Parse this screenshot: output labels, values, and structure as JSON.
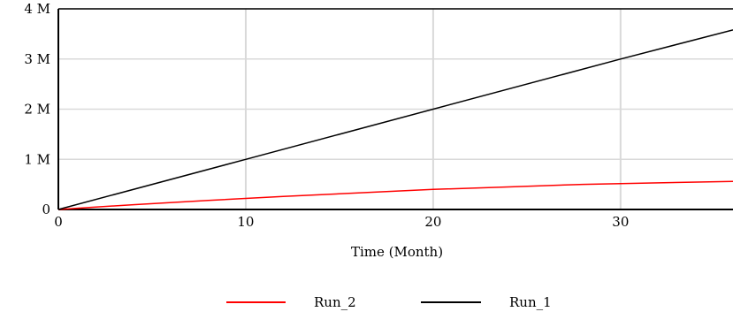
{
  "chart_data": {
    "type": "line",
    "xlabel": "Time (Month)",
    "ylabel": "",
    "xlim": [
      0,
      36
    ],
    "ylim": [
      0,
      4000000
    ],
    "x_ticks": [
      0,
      10,
      20,
      30
    ],
    "x_tick_labels": [
      "0",
      "10",
      "20",
      "30"
    ],
    "y_ticks": [
      0,
      1000000,
      2000000,
      3000000,
      4000000
    ],
    "y_tick_labels": [
      "0",
      "1 M",
      "2 M",
      "3 M",
      "4 M"
    ],
    "grid": true,
    "legend_position": "bottom",
    "series": [
      {
        "name": "Run_2",
        "color": "#ff0000",
        "x": [
          0,
          4,
          8,
          12,
          16,
          20,
          24,
          28,
          32,
          36
        ],
        "y": [
          0,
          95000,
          180000,
          260000,
          330000,
          400000,
          450000,
          500000,
          530000,
          560000
        ]
      },
      {
        "name": "Run_1",
        "color": "#000000",
        "x": [
          0,
          10,
          20,
          30,
          36
        ],
        "y": [
          0,
          1000000,
          2000000,
          3000000,
          3580000
        ]
      }
    ]
  }
}
